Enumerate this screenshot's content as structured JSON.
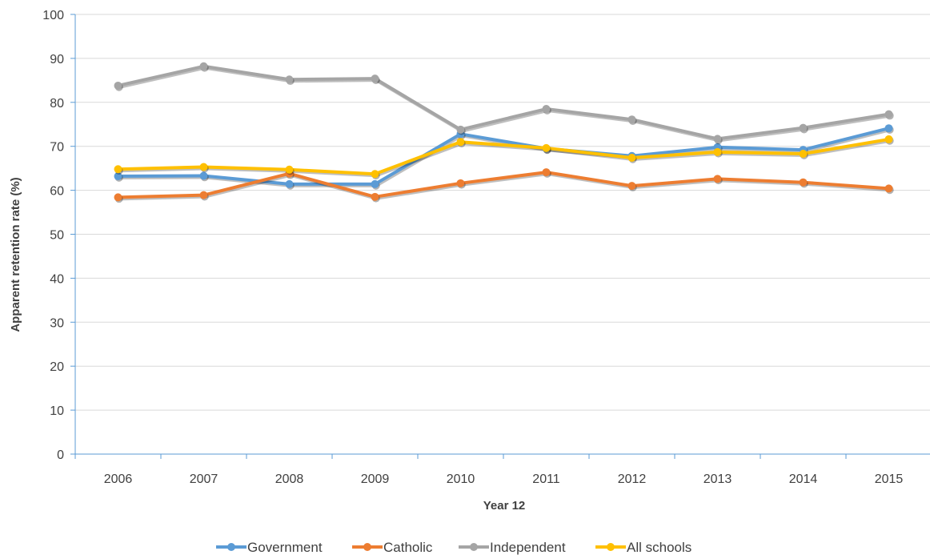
{
  "chart_data": {
    "type": "line",
    "title": "",
    "xlabel": "Year 12",
    "ylabel": "Apparent retention rate (%)",
    "ylim": [
      0,
      100
    ],
    "y_ticks": [
      "0",
      "10",
      "20",
      "30",
      "40",
      "50",
      "60",
      "70",
      "80",
      "90",
      "100"
    ],
    "categories": [
      "2006",
      "2007",
      "2008",
      "2009",
      "2010",
      "2011",
      "2012",
      "2013",
      "2014",
      "2015"
    ],
    "grid": "horizontal",
    "legend_position": "bottom",
    "series": [
      {
        "name": "Government",
        "color": "#5b9bd5",
        "values": [
          63.2,
          63.3,
          61.4,
          61.4,
          72.8,
          69.5,
          67.8,
          69.8,
          69.2,
          74.1
        ]
      },
      {
        "name": "Catholic",
        "color": "#ed7d31",
        "values": [
          58.4,
          58.9,
          63.8,
          58.5,
          61.6,
          64.1,
          61.0,
          62.6,
          61.8,
          60.4
        ]
      },
      {
        "name": "Independent",
        "color": "#a5a5a5",
        "values": [
          83.8,
          88.2,
          85.2,
          85.4,
          73.8,
          78.5,
          76.1,
          71.7,
          74.2,
          77.3
        ]
      },
      {
        "name": "All schools",
        "color": "#ffc000",
        "values": [
          64.8,
          65.3,
          64.7,
          63.7,
          71.0,
          69.6,
          67.4,
          68.7,
          68.3,
          71.6
        ]
      }
    ]
  }
}
